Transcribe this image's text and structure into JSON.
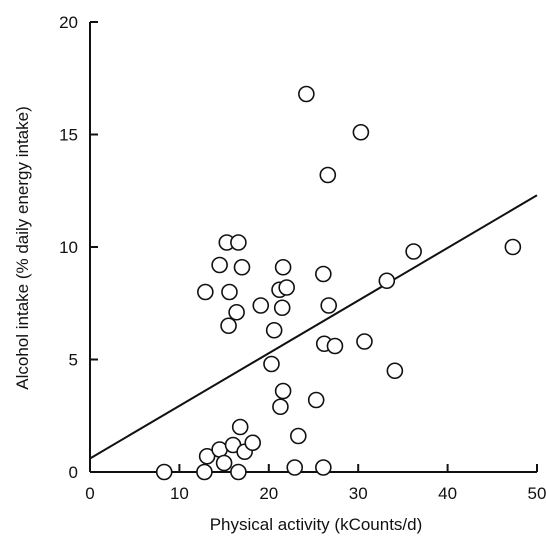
{
  "chart_data": {
    "type": "scatter",
    "title": "",
    "xlabel": "Physical activity (kCounts/d)",
    "ylabel": "Alcohol intake (% daily energy intake)",
    "xlim": [
      0,
      50
    ],
    "ylim": [
      0,
      20
    ],
    "x_ticks": [
      0,
      10,
      20,
      30,
      40,
      50
    ],
    "y_ticks": [
      0,
      5,
      10,
      15,
      20
    ],
    "grid": false,
    "legend": "none",
    "marker": "open-circle",
    "colors": {
      "axis": "#111111",
      "marker_stroke": "#111111",
      "marker_fill": "#ffffff",
      "line": "#111111"
    },
    "series": [
      {
        "points": [
          [
            8.3,
            0.0
          ],
          [
            12.8,
            0.0
          ],
          [
            13.1,
            0.7
          ],
          [
            14.5,
            1.0
          ],
          [
            15.0,
            0.4
          ],
          [
            16.0,
            1.2
          ],
          [
            16.6,
            0.0
          ],
          [
            17.3,
            0.9
          ],
          [
            18.2,
            1.3
          ],
          [
            16.8,
            2.0
          ],
          [
            12.9,
            8.0
          ],
          [
            14.5,
            9.2
          ],
          [
            15.3,
            10.2
          ],
          [
            15.6,
            8.0
          ],
          [
            15.5,
            6.5
          ],
          [
            16.6,
            10.2
          ],
          [
            16.4,
            7.1
          ],
          [
            17.0,
            9.1
          ],
          [
            19.1,
            7.4
          ],
          [
            20.3,
            4.8
          ],
          [
            20.6,
            6.3
          ],
          [
            21.2,
            8.1
          ],
          [
            21.6,
            9.1
          ],
          [
            21.5,
            7.3
          ],
          [
            21.6,
            3.6
          ],
          [
            22.0,
            8.2
          ],
          [
            21.3,
            2.9
          ],
          [
            22.9,
            0.2
          ],
          [
            23.3,
            1.6
          ],
          [
            24.2,
            16.8
          ],
          [
            25.3,
            3.2
          ],
          [
            26.1,
            8.8
          ],
          [
            26.2,
            5.7
          ],
          [
            26.7,
            7.4
          ],
          [
            26.6,
            13.2
          ],
          [
            26.1,
            0.2
          ],
          [
            27.4,
            5.6
          ],
          [
            30.3,
            15.1
          ],
          [
            30.7,
            5.8
          ],
          [
            33.2,
            8.5
          ],
          [
            34.1,
            4.5
          ],
          [
            36.2,
            9.8
          ],
          [
            47.3,
            10.0
          ]
        ]
      }
    ],
    "trendline": {
      "x": [
        0,
        50
      ],
      "y": [
        0.6,
        12.3
      ]
    }
  }
}
